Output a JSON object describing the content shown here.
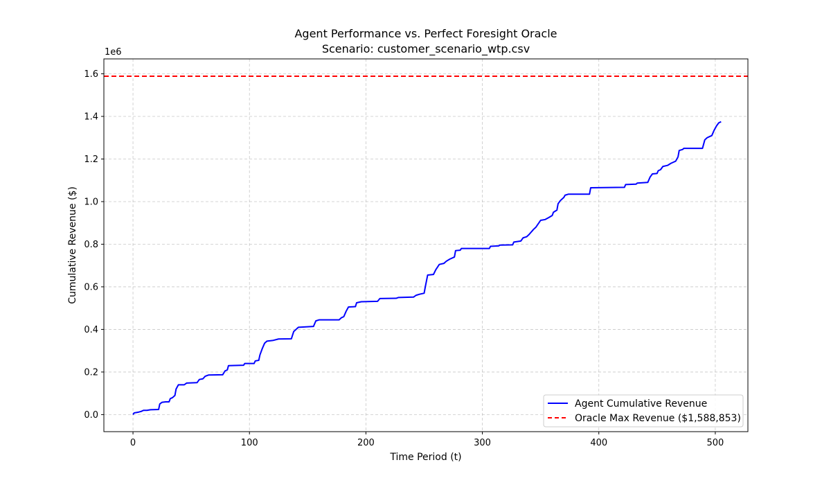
{
  "chart_data": {
    "type": "line",
    "title": "Agent Performance vs. Perfect Foresight Oracle",
    "subtitle": "Scenario: customer_scenario_wtp.csv",
    "xlabel": "Time Period (t)",
    "ylabel": "Cumulative Revenue ($)",
    "y_offset_text": "1e6",
    "xlim": [
      -25,
      528
    ],
    "ylim": [
      -0.08,
      1.67
    ],
    "xticks": [
      0,
      100,
      200,
      300,
      400,
      500
    ],
    "xtick_labels": [
      "0",
      "100",
      "200",
      "300",
      "400",
      "500"
    ],
    "yticks": [
      0.0,
      0.2,
      0.4,
      0.6,
      0.8,
      1.0,
      1.2,
      1.4,
      1.6
    ],
    "ytick_labels": [
      "0.0",
      "0.2",
      "0.4",
      "0.6",
      "0.8",
      "1.0",
      "1.2",
      "1.4",
      "1.6"
    ],
    "grid": true,
    "legend_position": "lower-right",
    "series": [
      {
        "name": "Agent Cumulative Revenue",
        "color": "#0000ff",
        "style": "solid",
        "points": [
          [
            0,
            0.0
          ],
          [
            1,
            0.008
          ],
          [
            3,
            0.01
          ],
          [
            5,
            0.012
          ],
          [
            7,
            0.015
          ],
          [
            9,
            0.02
          ],
          [
            12,
            0.02
          ],
          [
            15,
            0.023
          ],
          [
            22,
            0.024
          ],
          [
            23,
            0.05
          ],
          [
            25,
            0.058
          ],
          [
            28,
            0.06
          ],
          [
            31,
            0.06
          ],
          [
            32,
            0.075
          ],
          [
            34,
            0.08
          ],
          [
            36,
            0.09
          ],
          [
            37,
            0.12
          ],
          [
            39,
            0.14
          ],
          [
            44,
            0.14
          ],
          [
            46,
            0.148
          ],
          [
            55,
            0.15
          ],
          [
            57,
            0.165
          ],
          [
            60,
            0.168
          ],
          [
            62,
            0.18
          ],
          [
            65,
            0.186
          ],
          [
            77,
            0.187
          ],
          [
            79,
            0.205
          ],
          [
            81,
            0.21
          ],
          [
            82,
            0.23
          ],
          [
            95,
            0.232
          ],
          [
            96,
            0.24
          ],
          [
            104,
            0.24
          ],
          [
            105,
            0.252
          ],
          [
            108,
            0.255
          ],
          [
            109,
            0.28
          ],
          [
            111,
            0.31
          ],
          [
            113,
            0.335
          ],
          [
            115,
            0.345
          ],
          [
            120,
            0.348
          ],
          [
            125,
            0.355
          ],
          [
            136,
            0.356
          ],
          [
            138,
            0.39
          ],
          [
            140,
            0.4
          ],
          [
            142,
            0.41
          ],
          [
            155,
            0.414
          ],
          [
            157,
            0.44
          ],
          [
            160,
            0.445
          ],
          [
            177,
            0.445
          ],
          [
            179,
            0.455
          ],
          [
            181,
            0.46
          ],
          [
            183,
            0.485
          ],
          [
            185,
            0.505
          ],
          [
            191,
            0.507
          ],
          [
            192,
            0.525
          ],
          [
            196,
            0.53
          ],
          [
            210,
            0.532
          ],
          [
            212,
            0.545
          ],
          [
            226,
            0.546
          ],
          [
            228,
            0.55
          ],
          [
            241,
            0.552
          ],
          [
            243,
            0.56
          ],
          [
            246,
            0.565
          ],
          [
            250,
            0.57
          ],
          [
            251,
            0.6
          ],
          [
            253,
            0.655
          ],
          [
            258,
            0.658
          ],
          [
            260,
            0.68
          ],
          [
            263,
            0.705
          ],
          [
            267,
            0.71
          ],
          [
            269,
            0.72
          ],
          [
            272,
            0.73
          ],
          [
            276,
            0.74
          ],
          [
            277,
            0.77
          ],
          [
            281,
            0.772
          ],
          [
            282,
            0.78
          ],
          [
            306,
            0.78
          ],
          [
            307,
            0.79
          ],
          [
            314,
            0.792
          ],
          [
            315,
            0.796
          ],
          [
            326,
            0.797
          ],
          [
            327,
            0.81
          ],
          [
            333,
            0.815
          ],
          [
            335,
            0.83
          ],
          [
            338,
            0.835
          ],
          [
            340,
            0.845
          ],
          [
            344,
            0.87
          ],
          [
            346,
            0.88
          ],
          [
            350,
            0.912
          ],
          [
            354,
            0.916
          ],
          [
            357,
            0.925
          ],
          [
            360,
            0.935
          ],
          [
            361,
            0.95
          ],
          [
            364,
            0.96
          ],
          [
            365,
            0.99
          ],
          [
            367,
            1.005
          ],
          [
            370,
            1.02
          ],
          [
            371,
            1.03
          ],
          [
            374,
            1.035
          ],
          [
            392,
            1.035
          ],
          [
            393,
            1.065
          ],
          [
            422,
            1.067
          ],
          [
            423,
            1.08
          ],
          [
            432,
            1.082
          ],
          [
            433,
            1.087
          ],
          [
            442,
            1.09
          ],
          [
            444,
            1.115
          ],
          [
            446,
            1.13
          ],
          [
            450,
            1.132
          ],
          [
            451,
            1.145
          ],
          [
            453,
            1.15
          ],
          [
            455,
            1.165
          ],
          [
            459,
            1.17
          ],
          [
            462,
            1.18
          ],
          [
            464,
            1.185
          ],
          [
            466,
            1.19
          ],
          [
            468,
            1.21
          ],
          [
            469,
            1.24
          ],
          [
            472,
            1.245
          ],
          [
            473,
            1.25
          ],
          [
            489,
            1.25
          ],
          [
            491,
            1.29
          ],
          [
            493,
            1.3
          ],
          [
            495,
            1.305
          ],
          [
            497,
            1.31
          ],
          [
            499,
            1.335
          ],
          [
            501,
            1.355
          ],
          [
            503,
            1.37
          ],
          [
            505,
            1.375
          ]
        ]
      },
      {
        "name": "Oracle Max Revenue ($1,588,853)",
        "color": "#ff0000",
        "style": "dashed",
        "constant_y": 1.588853
      }
    ]
  }
}
